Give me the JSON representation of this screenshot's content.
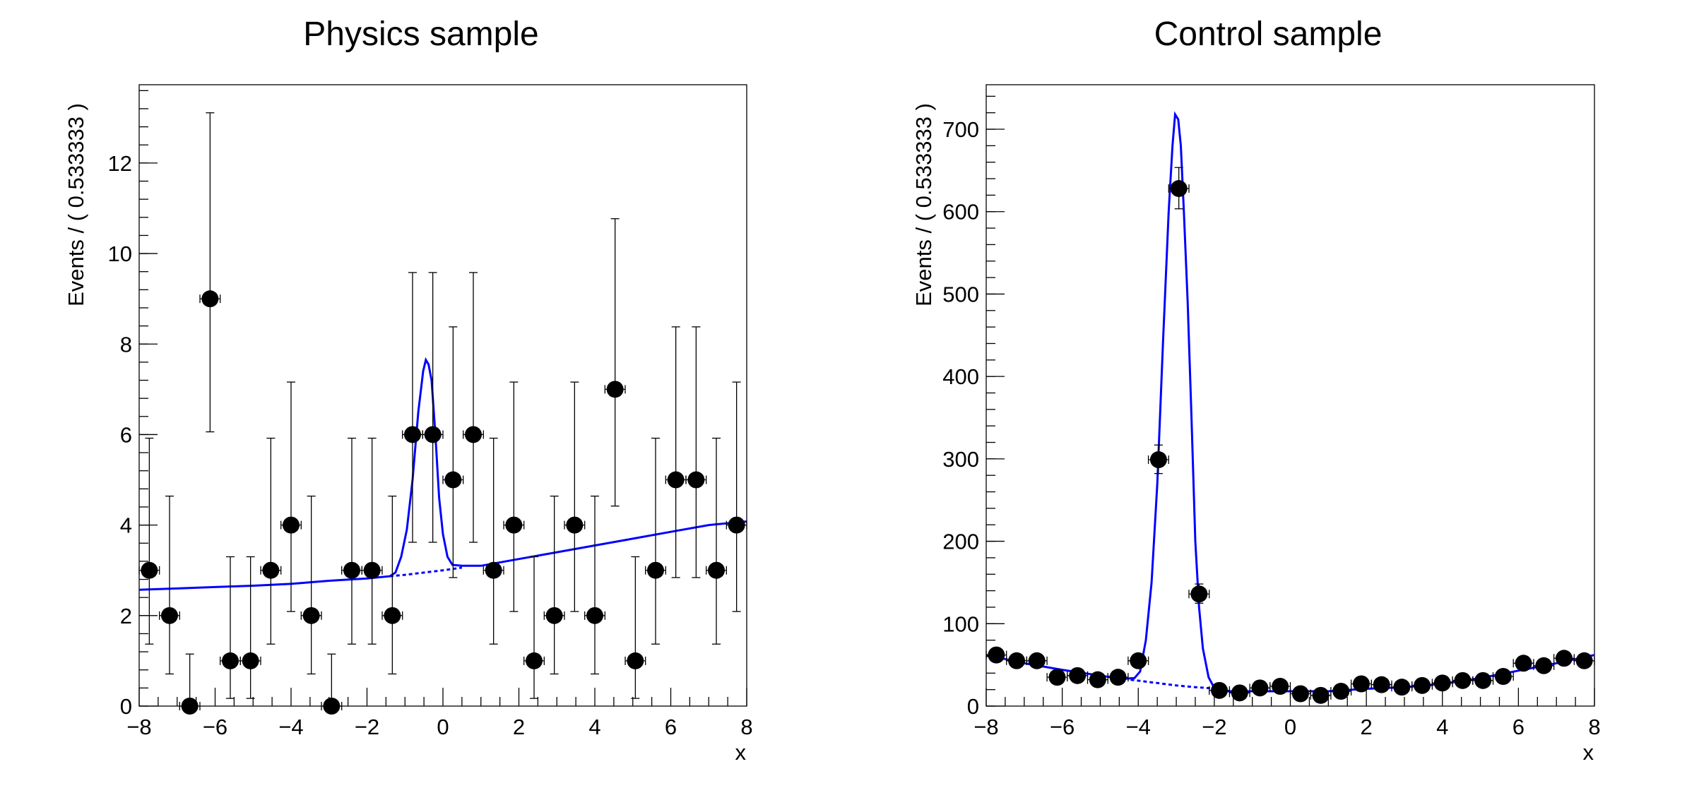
{
  "colors": {
    "model": "#0000ff",
    "data": "#000000",
    "frame": "#000000"
  },
  "chart_data": [
    {
      "type": "scatter",
      "title": "Physics sample",
      "xlabel": "x",
      "ylabel": "Events / ( 0.533333 )",
      "xlim": [
        -8,
        8
      ],
      "ylim": [
        0,
        13.73
      ],
      "xticks": [
        "-8",
        "-6",
        "-4",
        "-2",
        "0",
        "2",
        "4",
        "6",
        "8"
      ],
      "yticks": [
        "0",
        "2",
        "4",
        "6",
        "8",
        "10",
        "12"
      ],
      "ytick_step": 2,
      "grid": false,
      "x": [
        -7.733,
        -7.2,
        -6.667,
        -6.133,
        -5.6,
        -5.067,
        -4.533,
        -4.0,
        -3.467,
        -2.933,
        -2.4,
        -1.867,
        -1.333,
        -0.8,
        -0.267,
        0.267,
        0.8,
        1.333,
        1.867,
        2.4,
        2.933,
        3.467,
        4.0,
        4.533,
        5.067,
        5.6,
        6.133,
        6.667,
        7.2,
        7.733
      ],
      "values": [
        3,
        2,
        0,
        9,
        1,
        1,
        3,
        4,
        2,
        0,
        3,
        3,
        2,
        6,
        6,
        5,
        6,
        3,
        4,
        1,
        2,
        4,
        2,
        7,
        1,
        3,
        5,
        5,
        3,
        4
      ],
      "model_curve": [
        [
          -8,
          2.57
        ],
        [
          -7,
          2.6
        ],
        [
          -6,
          2.63
        ],
        [
          -5,
          2.66
        ],
        [
          -4,
          2.7
        ],
        [
          -3,
          2.77
        ],
        [
          -2,
          2.82
        ],
        [
          -1.4,
          2.87
        ],
        [
          -1.25,
          2.95
        ],
        [
          -1.1,
          3.3
        ],
        [
          -0.95,
          3.9
        ],
        [
          -0.8,
          5.0
        ],
        [
          -0.65,
          6.5
        ],
        [
          -0.52,
          7.4
        ],
        [
          -0.45,
          7.65
        ],
        [
          -0.38,
          7.55
        ],
        [
          -0.3,
          7.2
        ],
        [
          -0.2,
          6.0
        ],
        [
          -0.1,
          4.6
        ],
        [
          0.0,
          3.8
        ],
        [
          0.12,
          3.3
        ],
        [
          0.25,
          3.12
        ],
        [
          0.5,
          3.1
        ],
        [
          1,
          3.1
        ],
        [
          2,
          3.25
        ],
        [
          3,
          3.4
        ],
        [
          4,
          3.55
        ],
        [
          5,
          3.7
        ],
        [
          6,
          3.85
        ],
        [
          7,
          4.0
        ],
        [
          8,
          4.08
        ]
      ],
      "background_curve": [
        [
          -1.4,
          2.87
        ],
        [
          -1.0,
          2.9
        ],
        [
          -0.5,
          2.95
        ],
        [
          0,
          3.0
        ],
        [
          0.5,
          3.06
        ]
      ]
    },
    {
      "type": "scatter",
      "title": "Control sample",
      "xlabel": "x",
      "ylabel": "Events / ( 0.533333 )",
      "xlim": [
        -8,
        8
      ],
      "ylim": [
        0,
        754
      ],
      "xticks": [
        "-8",
        "-6",
        "-4",
        "-2",
        "0",
        "2",
        "4",
        "6",
        "8"
      ],
      "yticks": [
        "0",
        "100",
        "200",
        "300",
        "400",
        "500",
        "600",
        "700"
      ],
      "ytick_step": 100,
      "grid": false,
      "x": [
        -7.733,
        -7.2,
        -6.667,
        -6.133,
        -5.6,
        -5.067,
        -4.533,
        -4.0,
        -3.467,
        -2.933,
        -2.4,
        -1.867,
        -1.333,
        -0.8,
        -0.267,
        0.267,
        0.8,
        1.333,
        1.867,
        2.4,
        2.933,
        3.467,
        4.0,
        4.533,
        5.067,
        5.6,
        6.133,
        6.667,
        7.2,
        7.733
      ],
      "values": [
        62,
        55,
        55,
        35,
        37,
        32,
        35,
        55,
        299,
        628,
        136,
        19,
        16,
        22,
        24,
        15,
        13,
        18,
        27,
        26,
        23,
        25,
        28,
        31,
        31,
        36,
        52,
        49,
        58,
        55
      ],
      "model_curve": [
        [
          -8,
          62
        ],
        [
          -7,
          52
        ],
        [
          -6,
          44
        ],
        [
          -5,
          37
        ],
        [
          -4.4,
          33
        ],
        [
          -4.1,
          34
        ],
        [
          -3.95,
          42
        ],
        [
          -3.8,
          80
        ],
        [
          -3.65,
          150
        ],
        [
          -3.5,
          270
        ],
        [
          -3.35,
          440
        ],
        [
          -3.2,
          600
        ],
        [
          -3.1,
          680
        ],
        [
          -3.03,
          718
        ],
        [
          -2.95,
          712
        ],
        [
          -2.88,
          680
        ],
        [
          -2.8,
          600
        ],
        [
          -2.7,
          490
        ],
        [
          -2.6,
          350
        ],
        [
          -2.5,
          200
        ],
        [
          -2.4,
          120
        ],
        [
          -2.3,
          70
        ],
        [
          -2.15,
          35
        ],
        [
          -2.0,
          22
        ],
        [
          -1.7,
          18
        ],
        [
          -1,
          18
        ],
        [
          0,
          18
        ],
        [
          1,
          18
        ],
        [
          2,
          21
        ],
        [
          3,
          23
        ],
        [
          4,
          27
        ],
        [
          5,
          34
        ],
        [
          6,
          43
        ],
        [
          7,
          52
        ],
        [
          8,
          62
        ]
      ],
      "background_curve": [
        [
          -4.2,
          32
        ],
        [
          -3.5,
          28
        ],
        [
          -3,
          25
        ],
        [
          -2.5,
          23
        ],
        [
          -1.9,
          21
        ]
      ]
    }
  ]
}
